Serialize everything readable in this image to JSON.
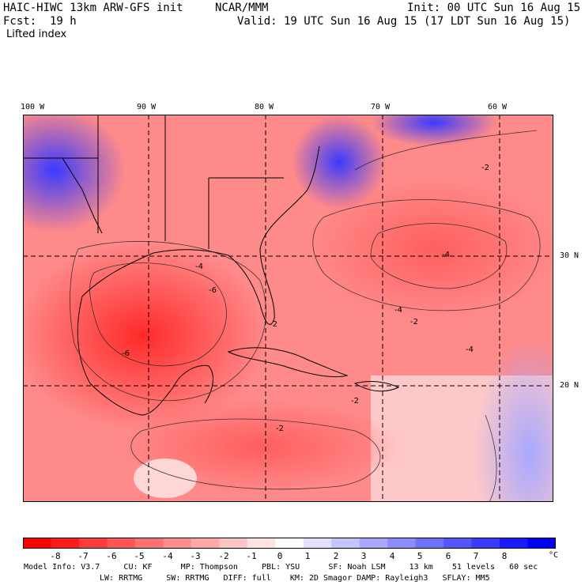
{
  "header": {
    "model": "HAIC-HIWC 13km ARW-GFS init",
    "org": "NCAR/MMM",
    "init": "Init: 00 UTC Sun 16 Aug 15",
    "fcst": "Fcst:  19 h",
    "valid": "Valid: 19 UTC Sun 16 Aug 15 (17 LDT Sun 16 Aug 15)",
    "field": "Lifted index"
  },
  "map": {
    "lon_labels": [
      "100 W",
      "90 W",
      "80 W",
      "70 W",
      "60 W"
    ],
    "lat_labels": [
      "30 N",
      "20 N"
    ],
    "contour_labels": [
      "-4",
      "-2",
      "-6",
      "-2",
      "-4",
      "-2",
      "-6",
      "-4",
      "-2",
      "-2",
      "-4"
    ]
  },
  "colorbar": {
    "colors": [
      "#ff0000",
      "#ff1a1a",
      "#ff3a3a",
      "#ff5555",
      "#ff7070",
      "#ff8c8c",
      "#ffa8a8",
      "#ffc4c4",
      "#ffe2e2",
      "#ffffff",
      "#e2e2ff",
      "#c4c4ff",
      "#a8a8ff",
      "#8c8cff",
      "#7070ff",
      "#5555ff",
      "#3a3aff",
      "#1a1aff",
      "#0000ff"
    ],
    "ticks": [
      "-8",
      "-7",
      "-6",
      "-5",
      "-4",
      "-3",
      "-2",
      "-1",
      "0",
      "1",
      "2",
      "3",
      "4",
      "5",
      "6",
      "7",
      "8"
    ],
    "unit": "°C"
  },
  "model_info": {
    "line1": "Model Info: V3.7     CU: KF      MP: Thompson     PBL: YSU      SF: Noah LSM     13 km    51 levels   60 sec",
    "line2": "LW: RRTMG     SW: RRTMG   DIFF: full    KM: 2D Smagor DAMP: Rayleigh3   SFLAY: MM5"
  }
}
